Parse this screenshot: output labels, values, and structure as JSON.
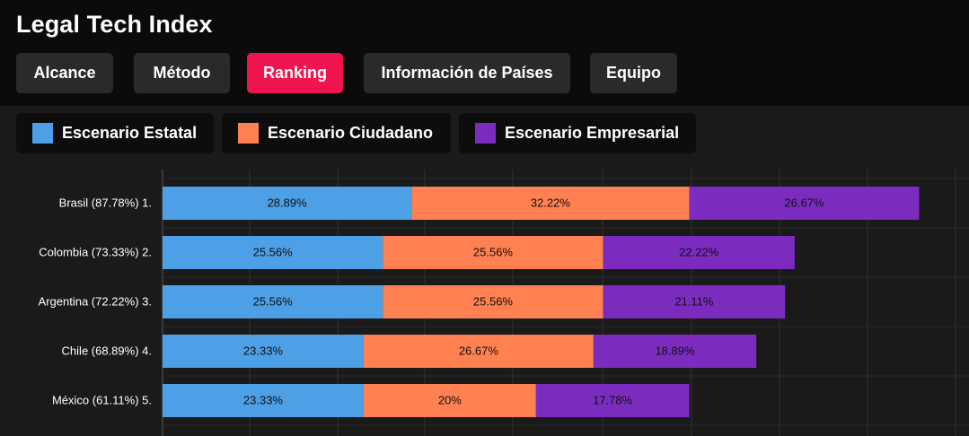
{
  "app": {
    "title": "Legal Tech Index"
  },
  "nav": {
    "tabs": [
      {
        "label": "Alcance",
        "active": false
      },
      {
        "label": "Método",
        "active": false
      },
      {
        "label": "Ranking",
        "active": true
      },
      {
        "label": "Información de Países",
        "active": false
      },
      {
        "label": "Equipo",
        "active": false
      }
    ]
  },
  "legend": {
    "items": [
      {
        "label": "Escenario Estatal",
        "color": "#4d9fe6"
      },
      {
        "label": "Escenario Ciudadano",
        "color": "#ff8050"
      },
      {
        "label": "Escenario Empresarial",
        "color": "#7b2cbf"
      }
    ]
  },
  "chart_data": {
    "type": "bar",
    "orientation": "horizontal",
    "stacked": true,
    "categories": [
      "Brasil (87.78%) 1.",
      "Colombia (73.33%) 2.",
      "Argentina (72.22%) 3.",
      "Chile (68.89%) 4.",
      "México (61.11%) 5."
    ],
    "series": [
      {
        "name": "Escenario Estatal",
        "color": "#4d9fe6",
        "values": [
          28.89,
          25.56,
          25.56,
          23.33,
          23.33
        ],
        "labels": [
          "28.89%",
          "25.56%",
          "25.56%",
          "23.33%",
          "23.33%"
        ]
      },
      {
        "name": "Escenario Ciudadano",
        "color": "#ff8050",
        "values": [
          32.22,
          25.56,
          25.56,
          26.67,
          20
        ],
        "labels": [
          "32.22%",
          "25.56%",
          "25.56%",
          "26.67%",
          "20%"
        ]
      },
      {
        "name": "Escenario Empresarial",
        "color": "#7b2cbf",
        "values": [
          26.67,
          22.22,
          21.11,
          18.89,
          17.78
        ],
        "labels": [
          "26.67%",
          "22.22%",
          "21.11%",
          "18.89%",
          "17.78%"
        ]
      }
    ],
    "xlim": [
      0,
      90
    ],
    "grid": true
  }
}
